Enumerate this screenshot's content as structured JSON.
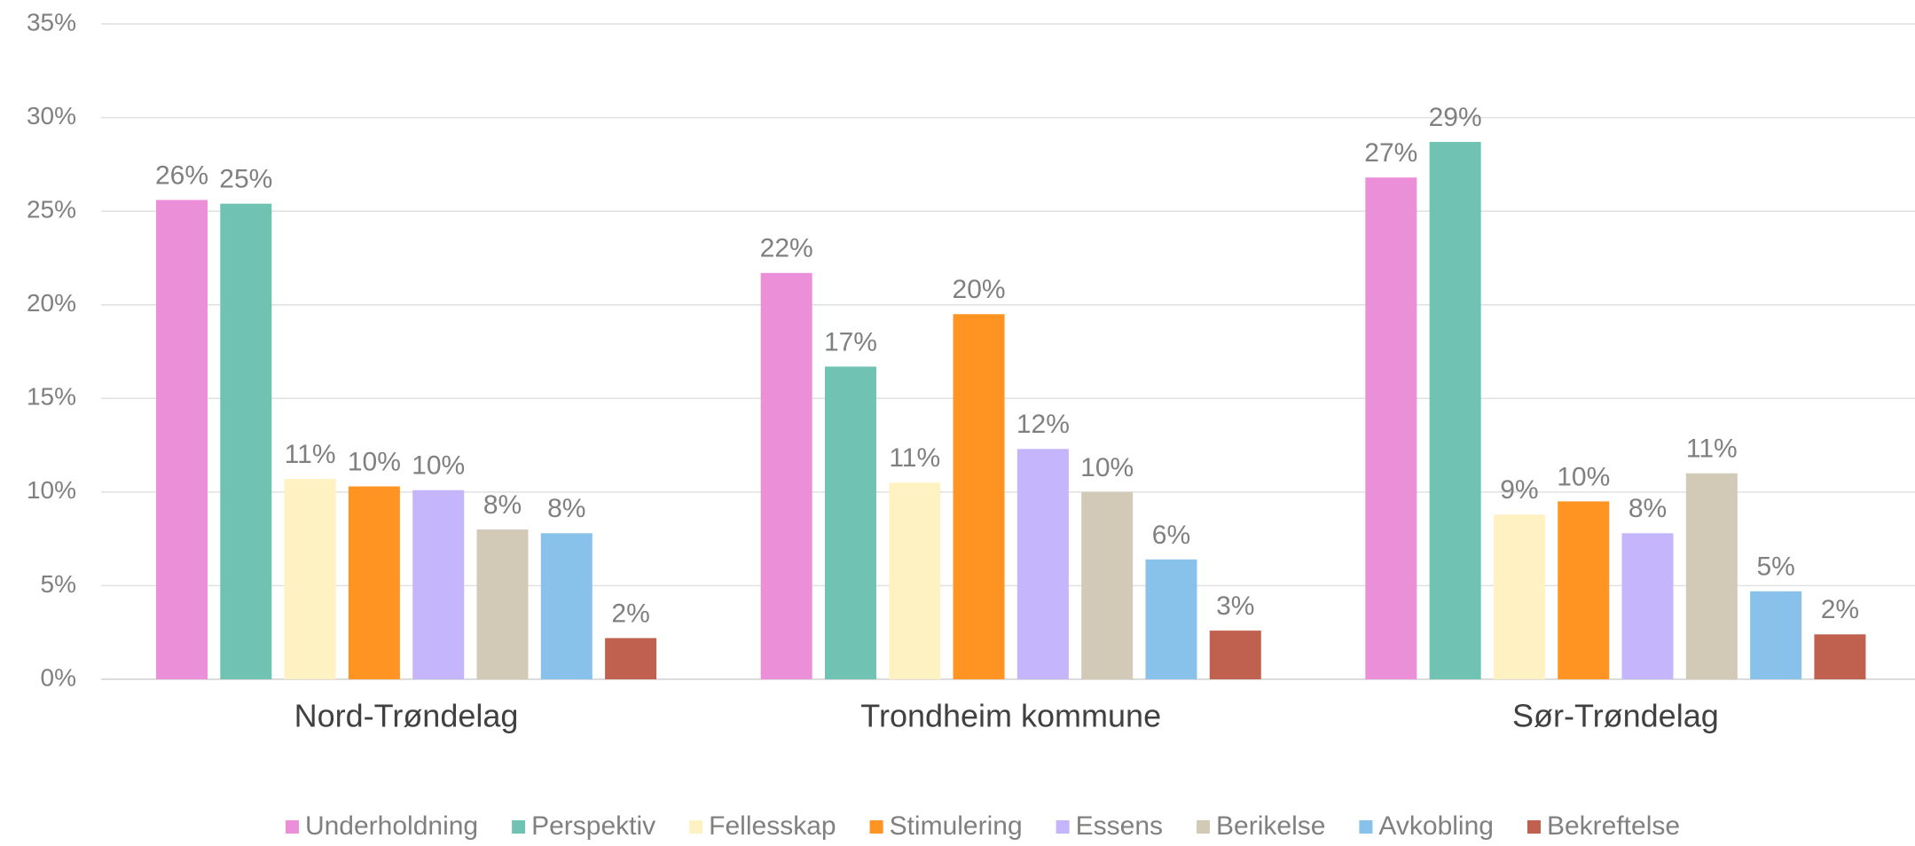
{
  "chart_data": {
    "type": "bar",
    "categories": [
      "Nord-Trøndelag",
      "Trondheim kommune",
      "Sør-Trøndelag"
    ],
    "series": [
      {
        "name": "Underholdning",
        "color": "#eb8fd8",
        "values": [
          25.6,
          21.7,
          26.8
        ],
        "value_labels": [
          "26%",
          "22%",
          "27%"
        ]
      },
      {
        "name": "Perspektiv",
        "color": "#70c3b3",
        "values": [
          25.4,
          16.7,
          28.7
        ],
        "value_labels": [
          "25%",
          "17%",
          "29%"
        ]
      },
      {
        "name": "Fellesskap",
        "color": "#fff2c2",
        "values": [
          10.7,
          10.5,
          8.8
        ],
        "value_labels": [
          "11%",
          "11%",
          "9%"
        ]
      },
      {
        "name": "Stimulering",
        "color": "#ff9422",
        "values": [
          10.3,
          19.5,
          9.5
        ],
        "value_labels": [
          "10%",
          "20%",
          "10%"
        ]
      },
      {
        "name": "Essens",
        "color": "#c4b5fd",
        "values": [
          10.1,
          12.3,
          7.8
        ],
        "value_labels": [
          "10%",
          "12%",
          "8%"
        ]
      },
      {
        "name": "Berikelse",
        "color": "#d2cab6",
        "values": [
          8.0,
          10.0,
          11.0
        ],
        "value_labels": [
          "8%",
          "10%",
          "11%"
        ]
      },
      {
        "name": "Avkobling",
        "color": "#88c2ea",
        "values": [
          7.8,
          6.4,
          4.7
        ],
        "value_labels": [
          "8%",
          "6%",
          "5%"
        ]
      },
      {
        "name": "Bekreftelse",
        "color": "#c0604f",
        "values": [
          2.2,
          2.6,
          2.4
        ],
        "value_labels": [
          "2%",
          "3%",
          "2%"
        ]
      }
    ],
    "ylim": [
      0,
      35
    ],
    "yticks": [
      {
        "value": 0,
        "label": "0%"
      },
      {
        "value": 5,
        "label": "5%"
      },
      {
        "value": 10,
        "label": "10%"
      },
      {
        "value": 15,
        "label": "15%"
      },
      {
        "value": 20,
        "label": "20%"
      },
      {
        "value": 25,
        "label": "25%"
      },
      {
        "value": 30,
        "label": "30%"
      },
      {
        "value": 35,
        "label": "35%"
      }
    ],
    "grid": true,
    "legend": "bottom"
  }
}
